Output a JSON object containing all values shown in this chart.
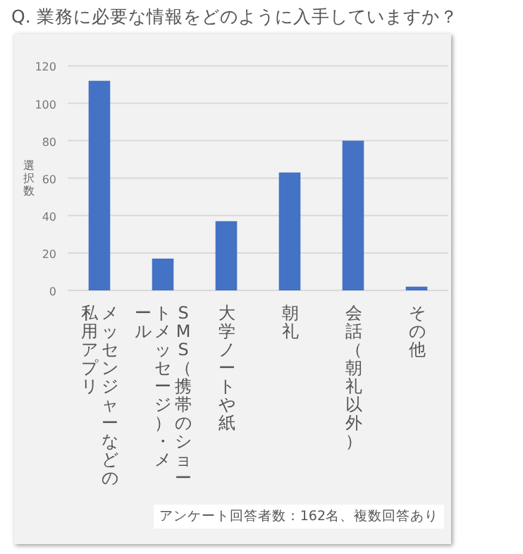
{
  "chart_data": {
    "type": "bar",
    "title": "Q. 業務に必要な情報をどのように入手していますか？",
    "ylabel": "選択数",
    "categories": [
      "メッセンジャーなどの私用アプリ",
      "SMS（携帯のショートメッセージ）・メール",
      "大学ノートや紙",
      "朝礼",
      "会話（朝礼以外）",
      "その他"
    ],
    "values": [
      112,
      17,
      37,
      63,
      80,
      2
    ],
    "color": "#4472c4",
    "ylim": [
      0,
      120
    ],
    "yticks": [
      0,
      20,
      40,
      60,
      80,
      100,
      120
    ],
    "grid": "y",
    "annotations": [
      "アンケート回答者数：162名、複数回答あり"
    ]
  }
}
